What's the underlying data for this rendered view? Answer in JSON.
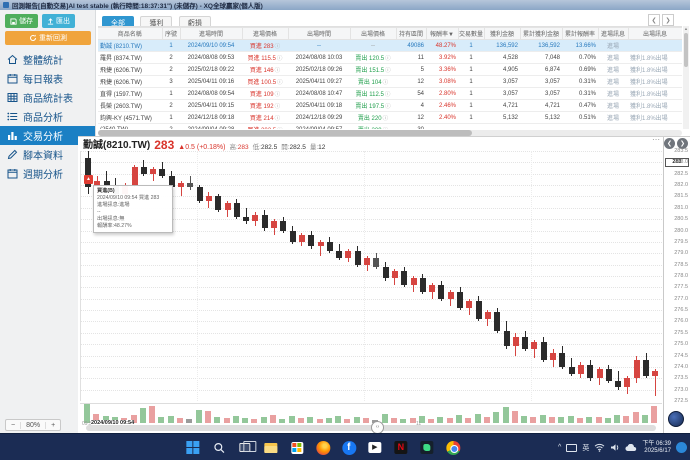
{
  "title_bar": {
    "title": "回測報告[自動交易]AI test stable (執行時間:18:37:31\") (未儲存) - XQ全球贏家(個人版)"
  },
  "sidebar": {
    "save": "儲存",
    "export": "匯出",
    "rerun": "重新回測",
    "menu": [
      {
        "label": "整體統計",
        "icon": "home-icon",
        "active": false
      },
      {
        "label": "每日報表",
        "icon": "calendar-icon",
        "active": false
      },
      {
        "label": "商品統計表",
        "icon": "table-icon",
        "active": false
      },
      {
        "label": "商品分析",
        "icon": "list-icon",
        "active": false
      },
      {
        "label": "交易分析",
        "icon": "bar-chart-icon",
        "active": true
      },
      {
        "label": "腳本資料",
        "icon": "pencil-icon",
        "active": false
      },
      {
        "label": "週期分析",
        "icon": "calendar-icon",
        "active": false
      }
    ],
    "zoom_out": "−",
    "zoom_level": "80%",
    "zoom_in": "+"
  },
  "filter_tabs": [
    {
      "label": "全部",
      "active": true
    },
    {
      "label": "獲利",
      "active": false
    },
    {
      "label": "虧損",
      "active": false
    }
  ],
  "table_nav": {
    "prev": "❮",
    "next": "❯"
  },
  "table": {
    "columns": [
      "商品名稱",
      "序號",
      "進場時間",
      "進場價格",
      "出場時間",
      "出場價格",
      "持有區間",
      "報酬率",
      "交易數量",
      "獲利金額",
      "累計獲利金額",
      "累計報酬率",
      "進場訊息",
      "出場訊息"
    ],
    "sorted_column": "報酬率",
    "sort_arrow": "▼",
    "rows": [
      {
        "name": "勤誠 (8210.TW)",
        "seq": "1",
        "entry_time": "2024/09/10 09:54",
        "entry_action": "買進",
        "entry_price": "283",
        "exit_time": "--",
        "exit_action": "",
        "exit_price": "--",
        "hold": "49086",
        "ret": "48.27%",
        "qty": "1",
        "profit": "136,592",
        "cum_profit": "136,592",
        "cum_ret": "13.66%",
        "entry_msg": "進場",
        "exit_msg": "",
        "selected": true
      },
      {
        "name": "羅昇 (8374.TW)",
        "seq": "2",
        "entry_time": "2024/08/08 09:53",
        "entry_action": "買進",
        "entry_price": "115.5",
        "exit_time": "2024/08/08 10:03",
        "exit_action": "賣出",
        "exit_price": "120.5",
        "hold": "11",
        "ret": "3.92%",
        "qty": "1",
        "profit": "4,528",
        "cum_profit": "7,048",
        "cum_ret": "0.70%",
        "entry_msg": "進場",
        "exit_msg": "獲利1.8%出場",
        "selected": false
      },
      {
        "name": "飛捷 (6206.TW)",
        "seq": "2",
        "entry_time": "2025/02/18 09:22",
        "entry_action": "買進",
        "entry_price": "146",
        "exit_time": "2025/02/18 09:26",
        "exit_action": "賣出",
        "exit_price": "151.5",
        "hold": "5",
        "ret": "3.36%",
        "qty": "1",
        "profit": "4,905",
        "cum_profit": "6,874",
        "cum_ret": "0.69%",
        "entry_msg": "進場",
        "exit_msg": "獲利1.8%出場",
        "selected": false
      },
      {
        "name": "飛捷 (6206.TW)",
        "seq": "3",
        "entry_time": "2025/04/11 09:16",
        "entry_action": "買進",
        "entry_price": "100.5",
        "exit_time": "2025/04/11 09:27",
        "exit_action": "賣出",
        "exit_price": "104",
        "hold": "12",
        "ret": "3.08%",
        "qty": "1",
        "profit": "3,057",
        "cum_profit": "3,057",
        "cum_ret": "0.31%",
        "entry_msg": "進場",
        "exit_msg": "獲利1.8%出場",
        "selected": false
      },
      {
        "name": "直得 (1597.TW)",
        "seq": "1",
        "entry_time": "2024/08/08 09:54",
        "entry_action": "買進",
        "entry_price": "109",
        "exit_time": "2024/08/08 10:47",
        "exit_action": "賣出",
        "exit_price": "112.5",
        "hold": "54",
        "ret": "2.80%",
        "qty": "1",
        "profit": "3,057",
        "cum_profit": "3,057",
        "cum_ret": "0.31%",
        "entry_msg": "進場",
        "exit_msg": "獲利1.8%出場",
        "selected": false
      },
      {
        "name": "長榮 (2603.TW)",
        "seq": "2",
        "entry_time": "2025/04/11 09:15",
        "entry_action": "買進",
        "entry_price": "192",
        "exit_time": "2025/04/11 09:18",
        "exit_action": "賣出",
        "exit_price": "197.5",
        "hold": "4",
        "ret": "2.46%",
        "qty": "1",
        "profit": "4,721",
        "cum_profit": "4,721",
        "cum_ret": "0.47%",
        "entry_msg": "進場",
        "exit_msg": "獲利1.8%出場",
        "selected": false
      },
      {
        "name": "鈞興-KY (4571.TW)",
        "seq": "1",
        "entry_time": "2024/12/18 09:18",
        "entry_action": "買進",
        "entry_price": "214",
        "exit_time": "2024/12/18 09:29",
        "exit_action": "賣出",
        "exit_price": "220",
        "hold": "12",
        "ret": "2.40%",
        "qty": "1",
        "profit": "5,132",
        "cum_profit": "5,132",
        "cum_ret": "0.51%",
        "entry_msg": "進場",
        "exit_msg": "獲利1.8%出場",
        "selected": false
      },
      {
        "name": "(2540.TW)",
        "seq": "2",
        "entry_time": "2024/09/04 09:28",
        "entry_action": "買進",
        "entry_price": "202.5",
        "exit_time": "2024/09/04 09:57",
        "exit_action": "賣出",
        "exit_price": "209",
        "hold": "30",
        "ret": "",
        "qty": "",
        "profit": "",
        "cum_profit": "",
        "cum_ret": "",
        "entry_msg": "",
        "exit_msg": "",
        "selected": false
      }
    ]
  },
  "quote": {
    "title": "勤誠(8210.TW)",
    "price": "283",
    "change": "▲0.5 (+0.18%)",
    "stats": [
      {
        "label": "高:",
        "value": "283",
        "color": "#d9342b"
      },
      {
        "label": "低:",
        "value": "282.5",
        "color": "#333333"
      },
      {
        "label": "開:",
        "value": "282.5",
        "color": "#333333"
      },
      {
        "label": "量:",
        "value": "12",
        "color": "#333333"
      }
    ]
  },
  "chart_controls": {
    "more": "⋯",
    "prev": "❮",
    "next": "❯",
    "scroll_handle": "‹›"
  },
  "chart_tooltip": {
    "lines": [
      "買進(B)",
      "2024/09/10 09:54 買進 283",
      "進場訊息:進場",
      "--",
      "出場訊息:無",
      "報酬率:48.27%"
    ]
  },
  "chart_data": {
    "type": "candlestick",
    "name": "勤誠",
    "symbol": "8210.TW",
    "y_axis": {
      "min": 272.5,
      "max": 283.5,
      "tick_step": 0.5
    },
    "x_axis": {
      "left_label": "09:54",
      "crosshair_label": "2024/09/10 09:54",
      "mid_label": "11"
    },
    "current_price_tag": "283",
    "entry_marker": {
      "bar_index": 0,
      "glyph": "▲",
      "color": "#e03c32"
    },
    "colors": {
      "up": "#d64541",
      "down": "#2b2b2b",
      "doji": "#555555",
      "vol_up": "#e9a0a0",
      "vol_down": "#93c79a",
      "vol_flat": "#9a9a9a"
    },
    "ohlcv": [
      [
        283.2,
        283.5,
        281.6,
        281.9,
        18,
        -1
      ],
      [
        281.9,
        282.4,
        281.6,
        282.2,
        9,
        1
      ],
      [
        282.2,
        282.6,
        281.9,
        282.0,
        7,
        -1
      ],
      [
        282.0,
        282.3,
        281.5,
        281.6,
        6,
        -1
      ],
      [
        281.6,
        282.1,
        281.4,
        282.0,
        5,
        1
      ],
      [
        282.0,
        282.9,
        281.9,
        282.8,
        8,
        1
      ],
      [
        282.8,
        283.1,
        282.4,
        282.5,
        14,
        -1
      ],
      [
        282.5,
        282.8,
        282.2,
        282.7,
        16,
        1
      ],
      [
        282.7,
        283.0,
        282.3,
        282.4,
        6,
        -1
      ],
      [
        282.4,
        282.6,
        281.8,
        281.9,
        7,
        -1
      ],
      [
        281.9,
        282.2,
        281.5,
        282.1,
        5,
        1
      ],
      [
        282.1,
        282.4,
        281.8,
        281.9,
        4,
        0
      ],
      [
        281.9,
        282.0,
        281.2,
        281.3,
        12,
        -1
      ],
      [
        281.3,
        281.7,
        281.0,
        281.5,
        11,
        1
      ],
      [
        281.5,
        281.6,
        280.8,
        280.9,
        6,
        -1
      ],
      [
        280.9,
        281.3,
        280.6,
        281.2,
        5,
        1
      ],
      [
        281.2,
        281.4,
        280.5,
        280.6,
        7,
        -1
      ],
      [
        280.6,
        281.0,
        280.3,
        280.4,
        5,
        -1
      ],
      [
        280.4,
        280.8,
        280.2,
        280.7,
        4,
        1
      ],
      [
        280.7,
        280.9,
        280.0,
        280.1,
        6,
        -1
      ],
      [
        280.1,
        280.5,
        279.8,
        280.4,
        8,
        1
      ],
      [
        280.4,
        280.6,
        279.9,
        280.0,
        4,
        -1
      ],
      [
        280.0,
        280.2,
        279.4,
        279.5,
        7,
        -1
      ],
      [
        279.5,
        279.9,
        279.3,
        279.8,
        5,
        1
      ],
      [
        279.8,
        280.0,
        279.2,
        279.3,
        6,
        -1
      ],
      [
        279.3,
        279.6,
        278.9,
        279.5,
        4,
        1
      ],
      [
        279.5,
        279.7,
        279.0,
        279.1,
        5,
        -1
      ],
      [
        279.1,
        279.4,
        278.7,
        278.8,
        7,
        -1
      ],
      [
        278.8,
        279.2,
        278.6,
        279.1,
        4,
        1
      ],
      [
        279.1,
        279.3,
        278.4,
        278.5,
        6,
        -1
      ],
      [
        278.5,
        278.9,
        278.2,
        278.8,
        5,
        1
      ],
      [
        278.8,
        279.0,
        278.3,
        278.4,
        3,
        0
      ],
      [
        278.4,
        278.6,
        277.8,
        277.9,
        9,
        -1
      ],
      [
        277.9,
        278.3,
        277.6,
        278.2,
        5,
        1
      ],
      [
        278.2,
        278.4,
        277.5,
        277.6,
        4,
        -1
      ],
      [
        277.6,
        278.0,
        277.3,
        277.9,
        5,
        1
      ],
      [
        277.9,
        278.1,
        277.2,
        277.3,
        7,
        -1
      ],
      [
        277.3,
        277.7,
        277.0,
        277.6,
        4,
        1
      ],
      [
        277.6,
        277.8,
        276.9,
        277.0,
        6,
        -1
      ],
      [
        277.0,
        277.4,
        276.7,
        277.3,
        5,
        1
      ],
      [
        277.3,
        277.5,
        276.5,
        276.6,
        8,
        -1
      ],
      [
        276.6,
        277.0,
        276.3,
        276.9,
        5,
        1
      ],
      [
        276.9,
        277.1,
        276.0,
        276.1,
        9,
        -1
      ],
      [
        276.1,
        276.5,
        275.8,
        276.4,
        6,
        1
      ],
      [
        276.4,
        276.6,
        275.5,
        275.6,
        10,
        -1
      ],
      [
        275.6,
        276.0,
        274.8,
        274.9,
        15,
        -1
      ],
      [
        274.9,
        275.5,
        274.5,
        275.3,
        11,
        1
      ],
      [
        275.3,
        275.6,
        274.7,
        274.8,
        7,
        -1
      ],
      [
        274.8,
        275.2,
        274.4,
        275.1,
        6,
        1
      ],
      [
        275.1,
        275.3,
        274.2,
        274.3,
        8,
        -1
      ],
      [
        274.3,
        274.8,
        274.0,
        274.6,
        6,
        1
      ],
      [
        274.6,
        274.9,
        273.9,
        274.0,
        6,
        -1
      ],
      [
        274.0,
        274.4,
        273.6,
        273.7,
        7,
        -1
      ],
      [
        273.7,
        274.2,
        273.5,
        274.1,
        5,
        1
      ],
      [
        274.1,
        274.3,
        273.4,
        273.5,
        6,
        -1
      ],
      [
        273.5,
        274.0,
        273.2,
        273.9,
        6,
        1
      ],
      [
        273.9,
        274.1,
        273.3,
        273.4,
        5,
        -1
      ],
      [
        273.4,
        273.8,
        273.0,
        273.1,
        8,
        -1
      ],
      [
        273.1,
        273.6,
        272.8,
        273.5,
        7,
        1
      ],
      [
        273.5,
        274.5,
        273.3,
        274.3,
        10,
        1
      ],
      [
        274.3,
        274.6,
        273.5,
        273.6,
        8,
        -1
      ],
      [
        273.6,
        273.9,
        272.7,
        273.8,
        16,
        1
      ]
    ]
  },
  "taskbar": {
    "ime": "英",
    "clock_time": "下午 06:39",
    "clock_date": "2025/6/17"
  }
}
